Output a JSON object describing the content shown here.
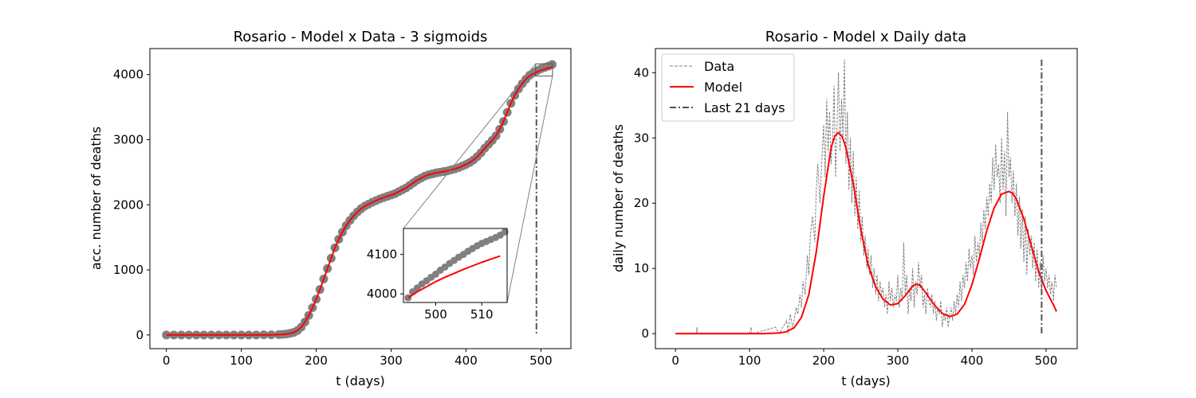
{
  "chart_data": [
    {
      "type": "scatter",
      "title": "Rosario - Model x Data - 3 sigmoids",
      "xlabel": "t (days)",
      "ylabel": "acc. number of deaths",
      "xlim": [
        -22,
        540
      ],
      "ylim": [
        -210,
        4400
      ],
      "xticks": [
        0,
        100,
        200,
        300,
        400,
        500
      ],
      "yticks": [
        0,
        1000,
        2000,
        3000,
        4000
      ],
      "vline_x": 494,
      "series": [
        {
          "kind": "data-points",
          "color": "#808080",
          "x": [
            0,
            10,
            20,
            30,
            40,
            50,
            60,
            70,
            80,
            90,
            100,
            110,
            120,
            130,
            140,
            150,
            155,
            160,
            165,
            170,
            175,
            180,
            185,
            190,
            195,
            200,
            205,
            210,
            215,
            220,
            225,
            230,
            235,
            240,
            245,
            250,
            255,
            260,
            265,
            270,
            275,
            280,
            285,
            290,
            295,
            300,
            305,
            310,
            315,
            320,
            325,
            330,
            335,
            340,
            345,
            350,
            355,
            360,
            365,
            370,
            375,
            380,
            385,
            390,
            395,
            400,
            405,
            410,
            415,
            420,
            425,
            430,
            435,
            440,
            445,
            450,
            455,
            460,
            465,
            470,
            475,
            480,
            485,
            490,
            495,
            500,
            505,
            510,
            515
          ],
          "y": [
            0,
            0,
            0,
            0,
            0,
            0,
            0,
            0,
            0,
            0,
            0,
            0,
            0,
            2,
            3,
            5,
            8,
            15,
            25,
            40,
            70,
            120,
            200,
            300,
            420,
            550,
            700,
            860,
            1020,
            1180,
            1340,
            1470,
            1580,
            1680,
            1760,
            1830,
            1890,
            1940,
            1980,
            2010,
            2040,
            2065,
            2090,
            2110,
            2130,
            2150,
            2170,
            2200,
            2230,
            2260,
            2300,
            2340,
            2380,
            2410,
            2440,
            2460,
            2475,
            2490,
            2500,
            2510,
            2520,
            2535,
            2550,
            2570,
            2595,
            2620,
            2650,
            2690,
            2740,
            2800,
            2870,
            2930,
            2990,
            3060,
            3160,
            3280,
            3420,
            3560,
            3680,
            3780,
            3860,
            3930,
            3990,
            4030,
            4060,
            4090,
            4110,
            4130,
            4155
          ]
        },
        {
          "kind": "model-line",
          "color": "#ff0000",
          "x": [
            0,
            10,
            20,
            30,
            40,
            50,
            60,
            70,
            80,
            90,
            100,
            110,
            120,
            130,
            140,
            150,
            155,
            160,
            165,
            170,
            175,
            180,
            185,
            190,
            195,
            200,
            205,
            210,
            215,
            220,
            225,
            230,
            235,
            240,
            245,
            250,
            255,
            260,
            265,
            270,
            275,
            280,
            285,
            290,
            295,
            300,
            305,
            310,
            315,
            320,
            325,
            330,
            335,
            340,
            345,
            350,
            355,
            360,
            365,
            370,
            375,
            380,
            385,
            390,
            395,
            400,
            405,
            410,
            415,
            420,
            425,
            430,
            435,
            440,
            445,
            450,
            455,
            460,
            465,
            470,
            475,
            480,
            485,
            490,
            495,
            500,
            505,
            510,
            515
          ],
          "y": [
            0,
            0,
            0,
            0,
            0,
            0,
            0,
            0,
            0,
            0,
            0,
            0,
            0,
            2,
            3,
            5,
            8,
            15,
            25,
            40,
            70,
            120,
            200,
            300,
            420,
            550,
            700,
            860,
            1020,
            1180,
            1340,
            1470,
            1580,
            1680,
            1760,
            1830,
            1890,
            1940,
            1980,
            2010,
            2040,
            2065,
            2090,
            2110,
            2130,
            2150,
            2170,
            2200,
            2230,
            2260,
            2300,
            2340,
            2380,
            2410,
            2440,
            2460,
            2475,
            2490,
            2500,
            2510,
            2520,
            2535,
            2550,
            2570,
            2595,
            2620,
            2650,
            2690,
            2740,
            2800,
            2870,
            2930,
            2990,
            3060,
            3160,
            3280,
            3420,
            3560,
            3680,
            3780,
            3860,
            3930,
            3980,
            4010,
            4040,
            4065,
            4085,
            4100,
            4115
          ]
        }
      ],
      "inset": {
        "xlim": [
          493,
          515.5
        ],
        "ylim": [
          3978,
          4166
        ],
        "xticks": [
          500,
          510
        ],
        "yticks": [
          4000,
          4100
        ],
        "data_x": [
          494,
          495,
          496,
          497,
          498,
          499,
          500,
          501,
          502,
          503,
          504,
          505,
          506,
          507,
          508,
          509,
          510,
          511,
          512,
          513,
          514,
          515
        ],
        "data_y": [
          3990,
          4005,
          4015,
          4025,
          4033,
          4042,
          4050,
          4060,
          4068,
          4077,
          4085,
          4093,
          4100,
          4108,
          4115,
          4122,
          4128,
          4133,
          4138,
          4143,
          4149,
          4157
        ],
        "model_x": [
          494,
          496,
          498,
          500,
          502,
          504,
          506,
          508,
          510,
          512,
          514
        ],
        "model_y": [
          3990,
          4005,
          4018,
          4031,
          4042,
          4052,
          4062,
          4071,
          4080,
          4088,
          4096
        ]
      }
    },
    {
      "type": "line",
      "title": "Rosario - Model x Daily data",
      "xlabel": "t (days)",
      "ylabel": "daily number of deaths",
      "xlim": [
        -27,
        542
      ],
      "ylim": [
        -2.3,
        43.7
      ],
      "xticks": [
        0,
        100,
        200,
        300,
        400,
        500
      ],
      "yticks": [
        0,
        10,
        20,
        30,
        40
      ],
      "legend": {
        "position": "top-left",
        "entries": [
          "Data",
          "Model",
          "Last 21 days"
        ]
      },
      "vline_x": 494,
      "vline_range": [
        0,
        42
      ],
      "series": [
        {
          "name": "Data",
          "color": "#808080",
          "style": "dashed",
          "x": [
            0,
            28,
            29,
            30,
            100,
            102,
            103,
            104,
            135,
            140,
            145,
            150,
            152,
            155,
            158,
            160,
            163,
            165,
            168,
            170,
            172,
            175,
            178,
            180,
            182,
            185,
            188,
            190,
            192,
            195,
            198,
            200,
            202,
            204,
            206,
            208,
            210,
            212,
            214,
            216,
            218,
            220,
            222,
            224,
            226,
            228,
            230,
            232,
            234,
            236,
            238,
            240,
            242,
            244,
            246,
            248,
            250,
            252,
            254,
            256,
            258,
            260,
            262,
            264,
            266,
            268,
            270,
            272,
            274,
            276,
            278,
            280,
            282,
            284,
            286,
            288,
            290,
            292,
            294,
            296,
            298,
            300,
            302,
            304,
            306,
            308,
            310,
            312,
            314,
            316,
            318,
            320,
            322,
            324,
            326,
            328,
            330,
            332,
            334,
            336,
            338,
            340,
            342,
            344,
            346,
            348,
            350,
            352,
            354,
            356,
            358,
            360,
            362,
            364,
            366,
            368,
            370,
            372,
            374,
            376,
            378,
            380,
            382,
            384,
            386,
            388,
            390,
            392,
            394,
            396,
            398,
            400,
            402,
            404,
            406,
            408,
            410,
            412,
            414,
            416,
            418,
            420,
            422,
            424,
            426,
            428,
            430,
            432,
            434,
            436,
            438,
            440,
            442,
            444,
            446,
            448,
            450,
            452,
            454,
            456,
            458,
            460,
            462,
            464,
            466,
            468,
            470,
            472,
            474,
            476,
            478,
            480,
            482,
            484,
            486,
            488,
            490,
            492,
            494,
            496,
            498,
            500,
            502,
            504,
            506,
            508,
            510,
            512,
            514
          ],
          "y": [
            0,
            0,
            1,
            0,
            0,
            1,
            0,
            0,
            1,
            0,
            1,
            2,
            0,
            3,
            1,
            2,
            4,
            3,
            6,
            4,
            8,
            6,
            12,
            9,
            15,
            18,
            14,
            22,
            26,
            20,
            28,
            32,
            24,
            36,
            28,
            34,
            26,
            30,
            38,
            24,
            32,
            40,
            28,
            36,
            30,
            42,
            26,
            34,
            22,
            30,
            20,
            28,
            18,
            24,
            16,
            22,
            14,
            18,
            12,
            15,
            10,
            13,
            9,
            12,
            7,
            10,
            6,
            9,
            5,
            8,
            6,
            7,
            4,
            6,
            3,
            8,
            5,
            7,
            4,
            6,
            5,
            9,
            4,
            7,
            5,
            14,
            6,
            9,
            3,
            7,
            5,
            10,
            4,
            8,
            6,
            11,
            7,
            9,
            4,
            6,
            3,
            7,
            5,
            4,
            6,
            3,
            5,
            2,
            4,
            3,
            5,
            1,
            3,
            2,
            4,
            1,
            3,
            4,
            2,
            5,
            3,
            6,
            4,
            8,
            5,
            9,
            7,
            11,
            8,
            13,
            10,
            12,
            9,
            15,
            11,
            14,
            12,
            17,
            14,
            19,
            16,
            21,
            18,
            23,
            20,
            27,
            22,
            29,
            24,
            26,
            20,
            30,
            22,
            28,
            18,
            34,
            24,
            27,
            20,
            25,
            18,
            23,
            15,
            21,
            13,
            19,
            11,
            18,
            9,
            16,
            12,
            15,
            10,
            14,
            8,
            13,
            7,
            11,
            6,
            12,
            8,
            10,
            7,
            9,
            6,
            8,
            5,
            9,
            7
          ]
        },
        {
          "name": "Model",
          "color": "#ff0000",
          "style": "solid",
          "x": [
            0,
            120,
            140,
            150,
            160,
            170,
            180,
            190,
            200,
            210,
            215,
            220,
            225,
            230,
            240,
            250,
            260,
            270,
            280,
            290,
            300,
            310,
            320,
            325,
            330,
            340,
            350,
            360,
            370,
            380,
            390,
            400,
            410,
            420,
            430,
            440,
            450,
            455,
            460,
            470,
            480,
            490,
            500,
            510,
            514
          ],
          "y": [
            0,
            0,
            0.1,
            0.3,
            0.9,
            2.5,
            6,
            12.5,
            21,
            28.5,
            30.3,
            30.8,
            30.2,
            28.5,
            23,
            16,
            10.5,
            7.2,
            5.3,
            4.4,
            4.6,
            5.8,
            7.3,
            7.6,
            7.4,
            5.9,
            4.3,
            3.1,
            2.6,
            3,
            4.5,
            7.5,
            11.5,
            15.8,
            19.3,
            21.4,
            21.8,
            21.5,
            20.6,
            17.6,
            13.5,
            9.5,
            6.6,
            4.4,
            3.4
          ]
        }
      ]
    }
  ]
}
